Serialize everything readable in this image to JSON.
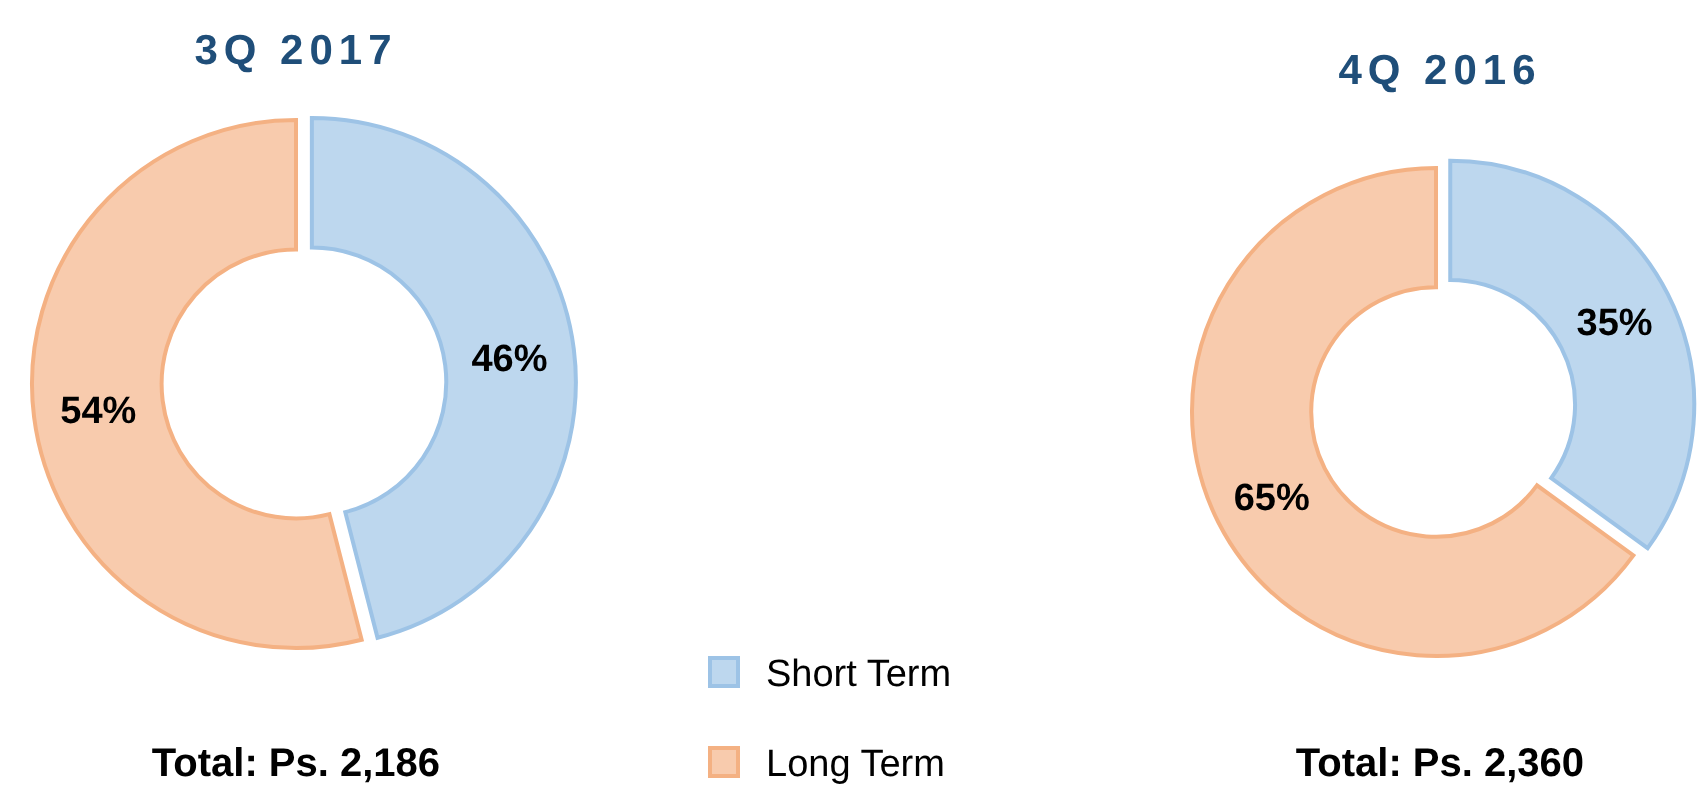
{
  "chart_data": [
    {
      "type": "donut",
      "title": "3Q 2017",
      "categories": [
        "Short Term",
        "Long Term"
      ],
      "values": [
        46,
        54
      ],
      "value_labels": [
        "46%",
        "54%"
      ],
      "colors": [
        "#bdd7ee",
        "#f8cbad"
      ],
      "legend": "bottom right",
      "annotations": [
        "Total: Ps. 2,186"
      ]
    },
    {
      "type": "donut",
      "title": "4Q 2016",
      "categories": [
        null,
        null
      ],
      "values": [
        35,
        65
      ],
      "value_labels": [
        "35%",
        "65%"
      ],
      "colors": [
        "#bdd7ee",
        "#f8cbad"
      ],
      "annotations": [
        "Total: Ps. 2,360"
      ]
    }
  ]
}
